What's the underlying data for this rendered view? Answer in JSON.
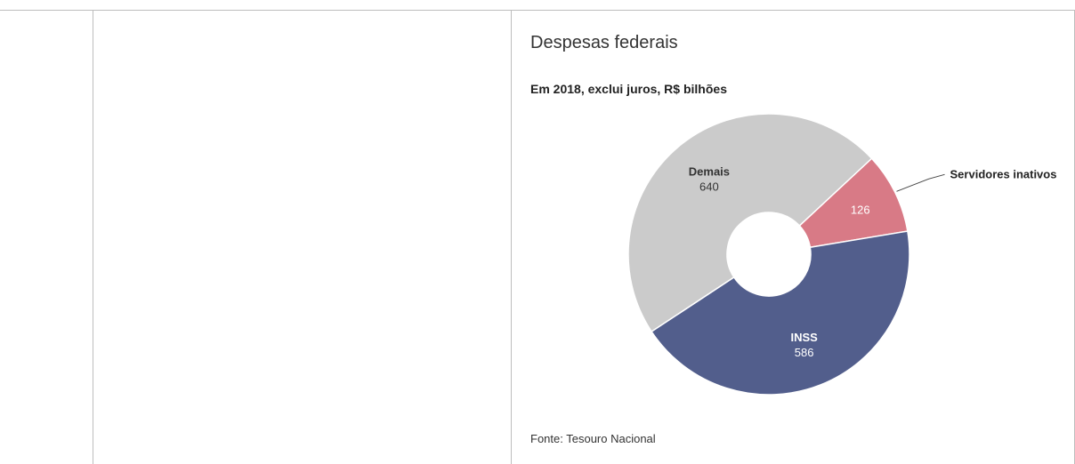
{
  "chart_data": {
    "type": "pie",
    "title": "Despesas federais",
    "subtitle": "Em 2018, exclui juros, R$ bilhões",
    "source": "Fonte: Tesouro Nacional",
    "donut": true,
    "slices": [
      {
        "label": "Servidores inativos",
        "value": 126,
        "color": "#d87a86",
        "label_outside": true,
        "label_color": "#ffffff"
      },
      {
        "label": "INSS",
        "value": 586,
        "color": "#525e8c",
        "label_outside": false,
        "label_color": "#ffffff"
      },
      {
        "label": "Demais",
        "value": 640,
        "color": "#cbcbcb",
        "label_outside": false,
        "label_color": "#333333"
      }
    ]
  }
}
